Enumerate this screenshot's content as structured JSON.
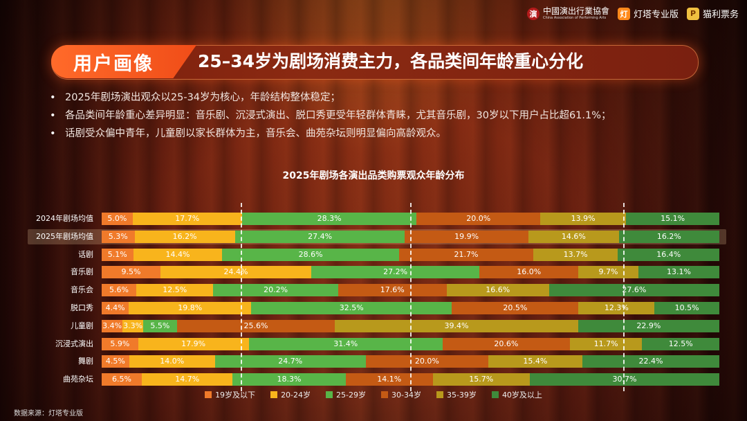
{
  "logos": {
    "assoc_name": "中國演出行業協會",
    "assoc_sub": "China Association of Performing Arts",
    "dengta": "灯塔专业版",
    "xiuli": "猫利票务"
  },
  "header": {
    "tag": "用户画像",
    "title": "25–34岁为剧场消费主力，各品类间年龄重心分化"
  },
  "bullets": [
    "2025年剧场演出观众以25-34岁为核心，年龄结构整体稳定；",
    "各品类间年龄重心差异明显：音乐剧、沉浸式演出、脱口秀更受年轻群体青睐，尤其音乐剧，30岁以下用户占比超61.1%；",
    "话剧受众偏中青年，儿童剧以家长群体为主，音乐会、曲苑杂坛则明显偏向高龄观众。"
  ],
  "chart_data": {
    "type": "bar",
    "stacked": true,
    "orientation": "horizontal",
    "title": "2025年剧场各演出品类购票观众年龄分布",
    "categories": [
      "2024年剧场均值",
      "2025年剧场均值",
      "话剧",
      "音乐剧",
      "音乐会",
      "脱口秀",
      "儿童剧",
      "沉浸式演出",
      "舞剧",
      "曲苑杂坛"
    ],
    "highlight_category": "2025年剧场均值",
    "series": [
      {
        "name": "19岁及以下",
        "color": "#f07a2a",
        "values": [
          5.0,
          5.3,
          5.1,
          9.5,
          5.6,
          4.4,
          3.4,
          5.9,
          4.5,
          6.5
        ]
      },
      {
        "name": "20-24岁",
        "color": "#f8b41c",
        "values": [
          17.7,
          16.2,
          14.4,
          24.4,
          12.5,
          19.8,
          3.3,
          17.9,
          14.0,
          14.7
        ]
      },
      {
        "name": "25-29岁",
        "color": "#58b548",
        "values": [
          28.3,
          27.4,
          28.6,
          27.2,
          20.2,
          32.5,
          5.5,
          31.4,
          24.7,
          18.3
        ]
      },
      {
        "name": "30-34岁",
        "color": "#c45a14",
        "values": [
          20.0,
          19.9,
          21.7,
          16.0,
          17.6,
          20.5,
          25.6,
          20.6,
          20.0,
          14.1
        ]
      },
      {
        "name": "35-39岁",
        "color": "#b8991c",
        "values": [
          13.9,
          14.6,
          13.7,
          9.7,
          16.6,
          12.3,
          39.4,
          11.7,
          15.4,
          15.7
        ]
      },
      {
        "name": "40岁及以上",
        "color": "#3f8a3b",
        "values": [
          15.1,
          16.2,
          16.4,
          13.1,
          27.6,
          10.5,
          22.9,
          12.5,
          22.4,
          30.7
        ]
      }
    ],
    "labels": [
      [
        "5.0%",
        "17.7%",
        "28.3%",
        "20.0%",
        "13.9%",
        "15.1%"
      ],
      [
        "5.3%",
        "16.2%",
        "27.4%",
        "19.9%",
        "14.6%",
        "16.2%"
      ],
      [
        "5.1%",
        "14.4%",
        "28.6%",
        "21.7%",
        "13.7%",
        "16.4%"
      ],
      [
        "9.5%",
        "24.4%",
        "27.2%",
        "16.0%",
        "9.7%",
        "13.1%"
      ],
      [
        "5.6%",
        "12.5%",
        "20.2%",
        "17.6%",
        "16.6%",
        "27.6%"
      ],
      [
        "4.4%",
        "19.8%",
        "32.5%",
        "20.5%",
        "12.3%",
        "10.5%"
      ],
      [
        "3.4%",
        "3.3%",
        "5.5%",
        "25.6%",
        "39.4%",
        "22.9%"
      ],
      [
        "5.9%",
        "17.9%",
        "31.4%",
        "20.6%",
        "11.7%",
        "12.5%"
      ],
      [
        "4.5%",
        "14.0%",
        "24.7%",
        "20.0%",
        "15.4%",
        "22.4%"
      ],
      [
        "6.5%",
        "14.7%",
        "18.3%",
        "14.1%",
        "15.7%",
        "30.7%"
      ]
    ],
    "reference_lines_cumulative_pct": [
      22.5,
      49.9,
      84.4
    ],
    "legend_placement": "bottom",
    "xlim": [
      0,
      100
    ]
  },
  "source": "数据来源：灯塔专业版"
}
